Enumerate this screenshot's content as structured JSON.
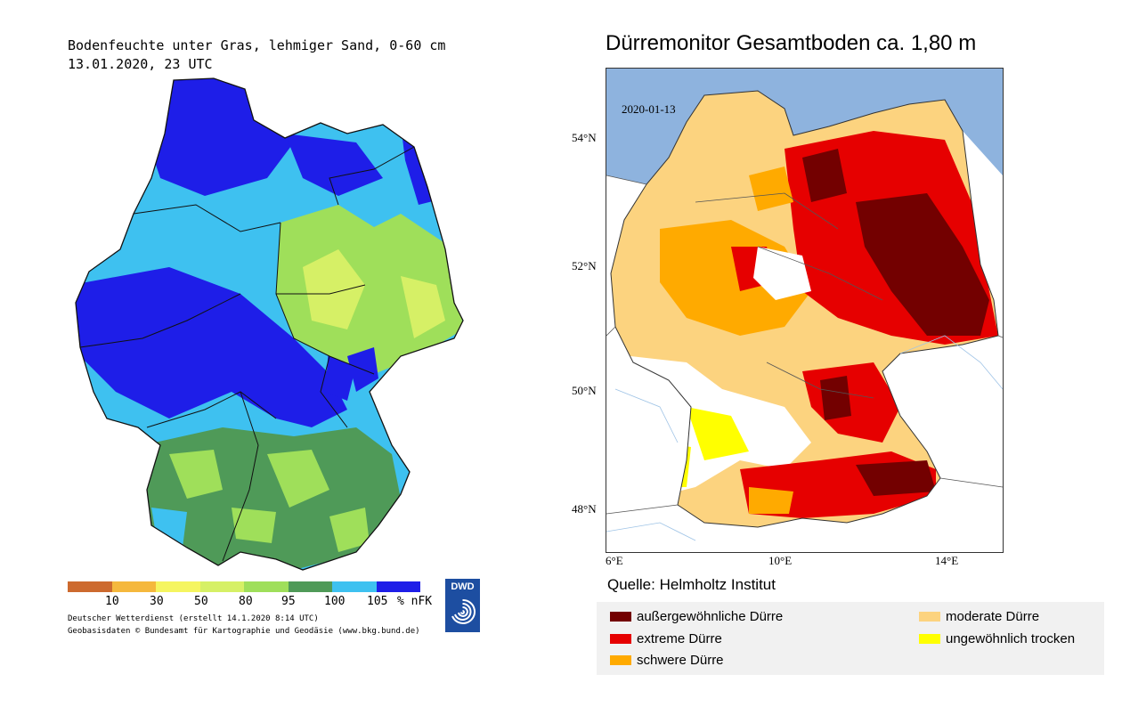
{
  "left": {
    "title_line1": "Bodenfeuchte unter Gras, lehmiger Sand, 0-60 cm",
    "title_line2": "13.01.2020, 23 UTC",
    "scale_colors": [
      "#cd6a2e",
      "#f5b83d",
      "#f5f560",
      "#d6f066",
      "#9fdf5a",
      "#4f9a58",
      "#3ec1f0",
      "#1e1ee8"
    ],
    "scale_ticks": [
      "10",
      "30",
      "50",
      "80",
      "95",
      "100",
      "105"
    ],
    "unit": "% nFK",
    "credit_line1": "Deutscher Wetterdienst (erstellt 14.1.2020 8:14 UTC)",
    "credit_line2": "Geobasisdaten © Bundesamt für Kartographie und Geodäsie (www.bkg.bund.de)",
    "logo_text": "DWD",
    "logo_color": "#1d4ea1"
  },
  "right": {
    "title": "Dürremonitor Gesamtboden ca. 1,80 m",
    "date": "2020-01-13",
    "lat_labels": [
      "54°N",
      "52°N",
      "50°N",
      "48°N"
    ],
    "lon_labels": [
      "6°E",
      "10°E",
      "14°E"
    ],
    "source": "Quelle: Helmholtz Institut",
    "legend": [
      {
        "label": "außergewöhnliche Dürre",
        "color": "#730000"
      },
      {
        "label": "extreme Dürre",
        "color": "#e60000"
      },
      {
        "label": "schwere Dürre",
        "color": "#ffaa00"
      },
      {
        "label": "moderate Dürre",
        "color": "#fcd37f"
      },
      {
        "label": "ungewöhnlich trocken",
        "color": "#ffff00"
      }
    ],
    "sea_color": "#8eb3de"
  }
}
